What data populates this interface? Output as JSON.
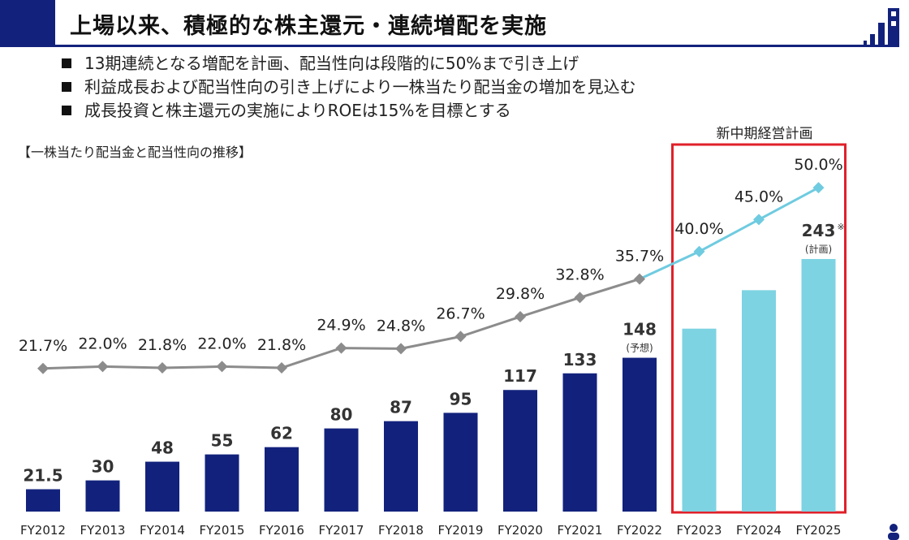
{
  "header": {
    "title": "上場以来、積極的な株主還元・連続増配を実施"
  },
  "bullets": [
    "13期連続となる増配を計画、配当性向は段階的に50%まで引き上げ",
    "利益成長および配当性向の引き上げにより一株当たり配当金の増加を見込む",
    "成長投資と株主還元の実施によりROEは15%を目標とする"
  ],
  "chart_title": "【一株当たり配当金と配当性向の推移】",
  "plan_label": "新中期経営計画",
  "colors": {
    "brand_navy": "#12227c",
    "bar_actual": "#12227c",
    "bar_plan": "#7dd3e2",
    "line_actual": "#8c8c8c",
    "line_plan": "#6fcbe0",
    "plan_frame": "#e0202a"
  },
  "chart_data": {
    "type": "bar",
    "categories": [
      "FY2012",
      "FY2013",
      "FY2014",
      "FY2015",
      "FY2016",
      "FY2017",
      "FY2018",
      "FY2019",
      "FY2020",
      "FY2021",
      "FY2022",
      "FY2023",
      "FY2024",
      "FY2025"
    ],
    "series": [
      {
        "chart_type": "bar",
        "values": [
          21.5,
          30,
          48,
          55,
          62,
          80,
          87,
          95,
          117,
          133,
          148,
          176,
          213,
          243
        ],
        "labels": [
          "21.5",
          "30",
          "48",
          "55",
          "62",
          "80",
          "87",
          "95",
          "117",
          "133",
          "148",
          "",
          "",
          "243"
        ],
        "sub_labels": [
          "",
          "",
          "",
          "",
          "",
          "",
          "",
          "",
          "",
          "",
          "(予想)",
          "",
          "",
          "(計画)"
        ],
        "notes": [
          "",
          "",
          "",
          "",
          "",
          "",
          "",
          "",
          "",
          "",
          "",
          "",
          "",
          "※"
        ]
      },
      {
        "chart_type": "line",
        "values": [
          21.7,
          22.0,
          21.8,
          22.0,
          21.8,
          24.9,
          24.8,
          26.7,
          29.8,
          32.8,
          35.7,
          40.0,
          45.0,
          50.0
        ],
        "labels": [
          "21.7%",
          "22.0%",
          "21.8%",
          "22.0%",
          "21.8%",
          "24.9%",
          "24.8%",
          "26.7%",
          "29.8%",
          "32.8%",
          "35.7%",
          "40.0%",
          "45.0%",
          "50.0%"
        ]
      }
    ],
    "plan_start_index": 11,
    "legend": "none",
    "grid": false
  }
}
